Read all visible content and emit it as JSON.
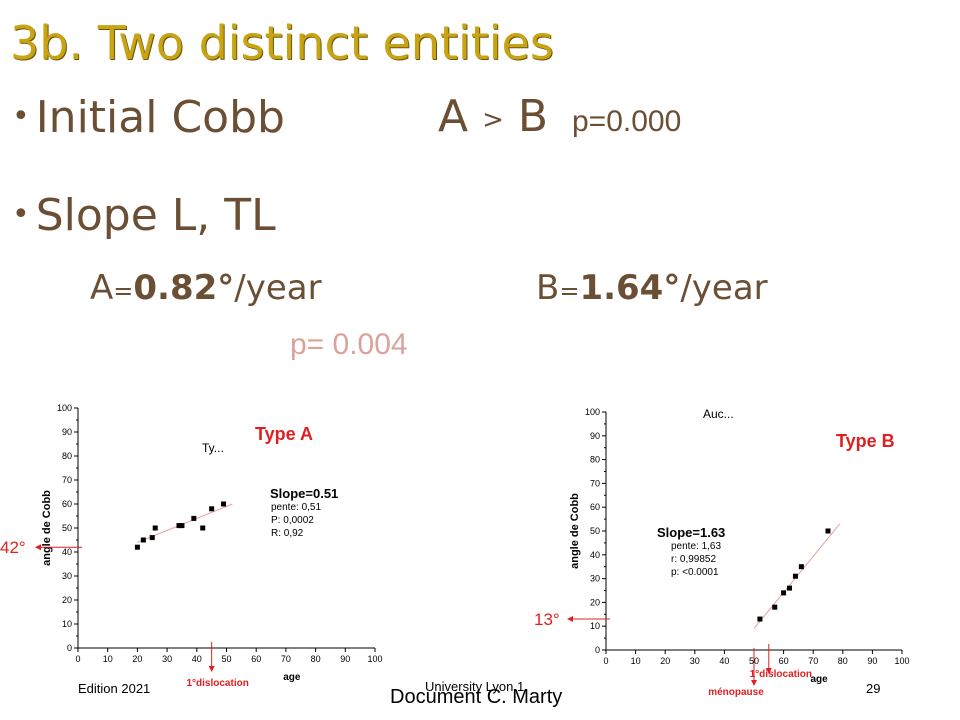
{
  "slide": {
    "title": "3b. Two distinct entities",
    "bullet_glyph": "•",
    "bullet1": {
      "label": "Initial Cobb",
      "comparison_a": "A",
      "comparison_op": ">",
      "comparison_b": "B",
      "pvalue": "p=0.000"
    },
    "bullet2": {
      "label": "Slope L, TL"
    },
    "slope_a": {
      "prefix": "A",
      "eq": "=",
      "value": "0.82°",
      "unit": "/year"
    },
    "slope_b": {
      "prefix": "B",
      "eq": "=",
      "value": "1.64°",
      "unit": "/year"
    },
    "slope_pvalue": "p= 0.004",
    "footer": {
      "edition": "Edition 2021",
      "university": "University Lyon 1",
      "page": "29",
      "document": "Document C. Marty"
    }
  },
  "chart_data": [
    {
      "type": "scatter",
      "title": "Type A",
      "subtitle": "Ty...",
      "xlabel": "age",
      "ylabel": "angle de Cobb",
      "xlim": [
        0,
        100
      ],
      "ylim": [
        0,
        100
      ],
      "xticks": [
        0,
        10,
        20,
        30,
        40,
        50,
        60,
        70,
        80,
        90,
        100
      ],
      "yticks": [
        0,
        10,
        20,
        30,
        40,
        50,
        60,
        70,
        80,
        90,
        100
      ],
      "points": [
        [
          20,
          42
        ],
        [
          22,
          45
        ],
        [
          25,
          46
        ],
        [
          26,
          50
        ],
        [
          34,
          51
        ],
        [
          35,
          51
        ],
        [
          39,
          54
        ],
        [
          42,
          50
        ],
        [
          45,
          58
        ],
        [
          49,
          60
        ]
      ],
      "fit_line": [
        [
          20,
          44
        ],
        [
          52,
          60
        ]
      ],
      "fit_color": "#e8a0a0",
      "stats_title": "Slope=0.51",
      "stats": [
        "pente: 0,51",
        "P: 0,0002",
        "R: 0,92"
      ],
      "annotation_event": "1°dislocation",
      "annotation_event_x": 45,
      "annotation_start": "42°",
      "annotation_start_y": 42,
      "accent": "#e02020"
    },
    {
      "type": "scatter",
      "title": "Type B",
      "subtitle": "Auc...",
      "xlabel": "age",
      "ylabel": "angle de Cobb",
      "xlim": [
        0,
        100
      ],
      "ylim": [
        0,
        100
      ],
      "xticks": [
        0,
        10,
        20,
        30,
        40,
        50,
        60,
        70,
        80,
        90,
        100
      ],
      "yticks": [
        0,
        10,
        20,
        30,
        40,
        50,
        60,
        70,
        80,
        90,
        100
      ],
      "points": [
        [
          52,
          13
        ],
        [
          57,
          18
        ],
        [
          60,
          24
        ],
        [
          62,
          26
        ],
        [
          64,
          31
        ],
        [
          66,
          35
        ],
        [
          75,
          50
        ]
      ],
      "fit_line": [
        [
          50,
          9
        ],
        [
          79,
          53
        ]
      ],
      "fit_color": "#e8a0a0",
      "stats_title": "Slope=1.63",
      "stats": [
        "pente: 1,63",
        "r: 0,99852",
        "p: <0.0001"
      ],
      "annotation_event": "1°dislocation",
      "annotation_event_x": 55,
      "annotation_menopause": "ménopause",
      "annotation_menopause_x": 50,
      "annotation_start": "13°",
      "annotation_start_y": 13,
      "accent": "#e02020"
    }
  ]
}
